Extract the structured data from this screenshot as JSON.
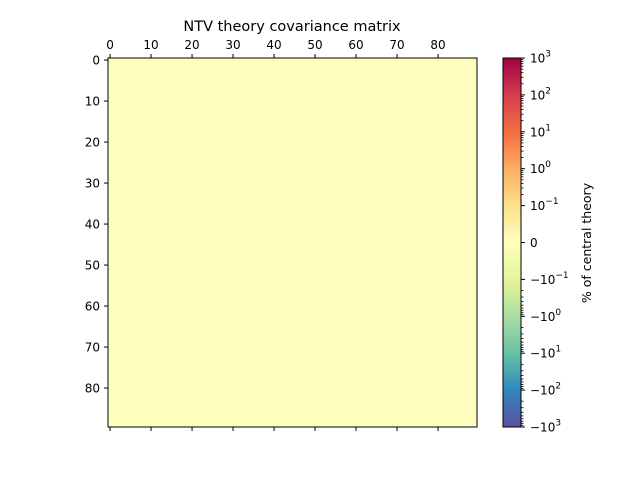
{
  "chart_data": {
    "type": "heatmap",
    "title": "NTV  theory covariance matrix",
    "x_ticks": [
      0,
      10,
      20,
      30,
      40,
      50,
      60,
      70,
      80
    ],
    "y_ticks": [
      0,
      10,
      20,
      30,
      40,
      50,
      60,
      70,
      80
    ],
    "x_range": [
      0,
      89
    ],
    "y_range": [
      0,
      89
    ],
    "matrix_size": 90,
    "matrix_value": 0,
    "fill_color": "#feffbe",
    "colorbar": {
      "label": "% of central theory",
      "scale": "symlog",
      "range": [
        -1000,
        1000
      ],
      "ticks": [
        {
          "text": "10",
          "exp": "3"
        },
        {
          "text": "10",
          "exp": "2"
        },
        {
          "text": "10",
          "exp": "1"
        },
        {
          "text": "10",
          "exp": "0"
        },
        {
          "text": "10",
          "exp": "−1"
        },
        {
          "text": "0",
          "exp": ""
        },
        {
          "text": "−10",
          "exp": "−1"
        },
        {
          "text": "−10",
          "exp": "0"
        },
        {
          "text": "−10",
          "exp": "1"
        },
        {
          "text": "−10",
          "exp": "2"
        },
        {
          "text": "−10",
          "exp": "3"
        }
      ],
      "colormap": "Spectral_r",
      "colors": [
        "#5e4fa2",
        "#3288bd",
        "#66c2a5",
        "#abdda4",
        "#e6f598",
        "#feffbe",
        "#fee08b",
        "#fdae61",
        "#f46d43",
        "#d53e4f",
        "#9e0142"
      ]
    }
  }
}
